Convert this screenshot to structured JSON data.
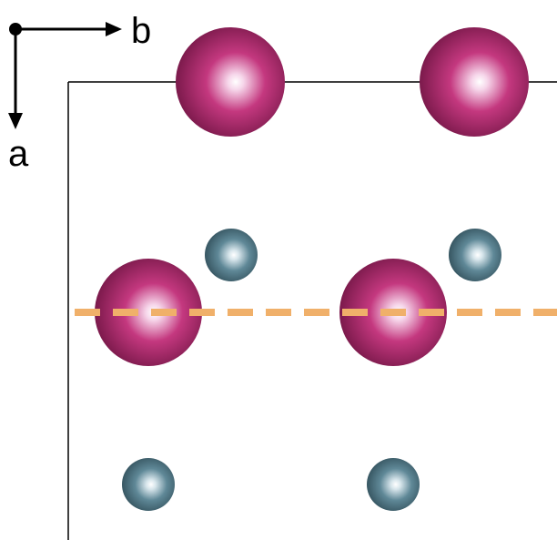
{
  "axes": {
    "b_label": "b",
    "a_label": "a"
  },
  "colors": {
    "large_atom": "#b0246e",
    "small_atom": "#4f7684",
    "cutting_line": "#f0b06a",
    "unit_cell_edge": "#000000"
  },
  "atoms": {
    "large_atom_count": 4,
    "small_atom_count": 4
  }
}
